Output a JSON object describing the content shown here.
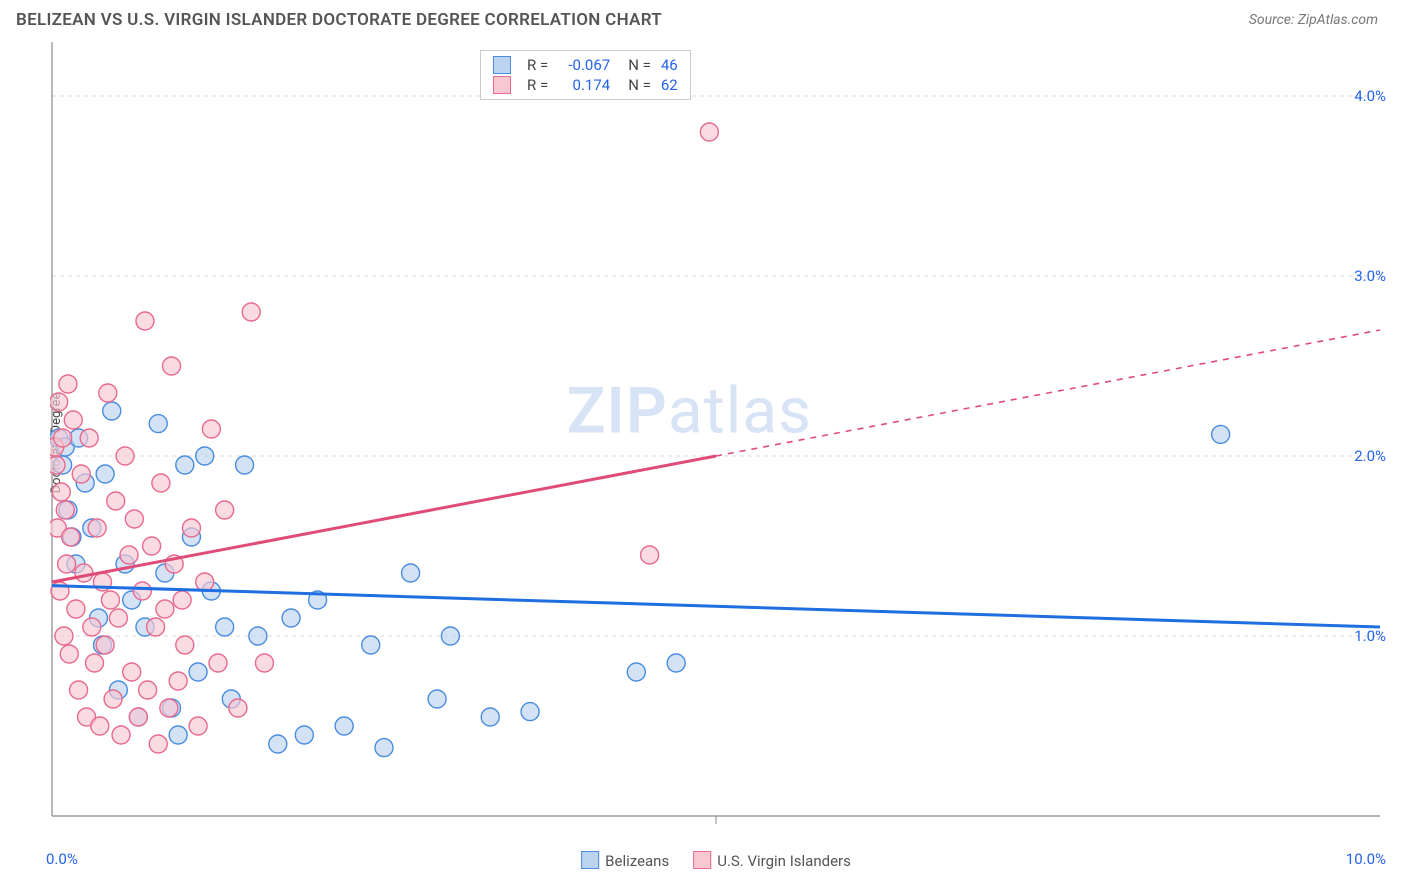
{
  "title": "BELIZEAN VS U.S. VIRGIN ISLANDER DOCTORATE DEGREE CORRELATION CHART",
  "source_label": "Source: ZipAtlas.com",
  "ylabel": "Doctorate Degree",
  "watermark_a": "ZIP",
  "watermark_b": "atlas",
  "chart": {
    "type": "scatter",
    "xlim": [
      0,
      10
    ],
    "ylim": [
      0,
      4.3
    ],
    "x_ticks": [
      "0.0%",
      "10.0%"
    ],
    "y_ticks": [
      {
        "v": 1.0,
        "label": "1.0%"
      },
      {
        "v": 2.0,
        "label": "2.0%"
      },
      {
        "v": 3.0,
        "label": "3.0%"
      },
      {
        "v": 4.0,
        "label": "4.0%"
      }
    ],
    "grid_color": "#d9d9d9",
    "axis_color": "#888888",
    "background": "#ffffff",
    "marker_radius": 9,
    "marker_stroke_width": 1.4,
    "line_width": 3,
    "series": [
      {
        "name": "Belizeans",
        "fill": "#bcd4f0",
        "stroke": "#4a8de0",
        "line_color": "#1f6fe0",
        "trend": {
          "x1": 0,
          "y1": 1.28,
          "x2": 10,
          "y2": 1.05,
          "solid_until_x": 10
        },
        "points": [
          [
            0.05,
            2.1
          ],
          [
            0.08,
            1.95
          ],
          [
            0.1,
            2.05
          ],
          [
            0.12,
            1.7
          ],
          [
            0.15,
            1.55
          ],
          [
            0.18,
            1.4
          ],
          [
            0.2,
            2.1
          ],
          [
            0.25,
            1.85
          ],
          [
            0.3,
            1.6
          ],
          [
            0.35,
            1.1
          ],
          [
            0.38,
            0.95
          ],
          [
            0.4,
            1.9
          ],
          [
            0.45,
            2.25
          ],
          [
            0.5,
            0.7
          ],
          [
            0.55,
            1.4
          ],
          [
            0.6,
            1.2
          ],
          [
            0.65,
            0.55
          ],
          [
            0.7,
            1.05
          ],
          [
            0.8,
            2.18
          ],
          [
            0.85,
            1.35
          ],
          [
            0.9,
            0.6
          ],
          [
            0.95,
            0.45
          ],
          [
            1.0,
            1.95
          ],
          [
            1.05,
            1.55
          ],
          [
            1.1,
            0.8
          ],
          [
            1.15,
            2.0
          ],
          [
            1.2,
            1.25
          ],
          [
            1.3,
            1.05
          ],
          [
            1.35,
            0.65
          ],
          [
            1.45,
            1.95
          ],
          [
            1.55,
            1.0
          ],
          [
            1.7,
            0.4
          ],
          [
            1.8,
            1.1
          ],
          [
            1.9,
            0.45
          ],
          [
            2.0,
            1.2
          ],
          [
            2.2,
            0.5
          ],
          [
            2.4,
            0.95
          ],
          [
            2.5,
            0.38
          ],
          [
            2.7,
            1.35
          ],
          [
            2.9,
            0.65
          ],
          [
            3.0,
            1.0
          ],
          [
            3.3,
            0.55
          ],
          [
            3.6,
            0.58
          ],
          [
            4.4,
            0.8
          ],
          [
            4.7,
            0.85
          ],
          [
            8.8,
            2.12
          ]
        ]
      },
      {
        "name": "U.S. Virgin Islanders",
        "fill": "#f7c7d2",
        "stroke": "#e86a8e",
        "line_color": "#e04c78",
        "trend": {
          "x1": 0,
          "y1": 1.3,
          "x2": 10,
          "y2": 2.7,
          "solid_until_x": 5.0
        },
        "points": [
          [
            0.02,
            2.05
          ],
          [
            0.03,
            1.95
          ],
          [
            0.04,
            1.6
          ],
          [
            0.05,
            2.3
          ],
          [
            0.06,
            1.25
          ],
          [
            0.07,
            1.8
          ],
          [
            0.08,
            2.1
          ],
          [
            0.09,
            1.0
          ],
          [
            0.1,
            1.7
          ],
          [
            0.11,
            1.4
          ],
          [
            0.12,
            2.4
          ],
          [
            0.13,
            0.9
          ],
          [
            0.14,
            1.55
          ],
          [
            0.16,
            2.2
          ],
          [
            0.18,
            1.15
          ],
          [
            0.2,
            0.7
          ],
          [
            0.22,
            1.9
          ],
          [
            0.24,
            1.35
          ],
          [
            0.26,
            0.55
          ],
          [
            0.28,
            2.1
          ],
          [
            0.3,
            1.05
          ],
          [
            0.32,
            0.85
          ],
          [
            0.34,
            1.6
          ],
          [
            0.36,
            0.5
          ],
          [
            0.38,
            1.3
          ],
          [
            0.4,
            0.95
          ],
          [
            0.42,
            2.35
          ],
          [
            0.44,
            1.2
          ],
          [
            0.46,
            0.65
          ],
          [
            0.48,
            1.75
          ],
          [
            0.5,
            1.1
          ],
          [
            0.52,
            0.45
          ],
          [
            0.55,
            2.0
          ],
          [
            0.58,
            1.45
          ],
          [
            0.6,
            0.8
          ],
          [
            0.62,
            1.65
          ],
          [
            0.65,
            0.55
          ],
          [
            0.68,
            1.25
          ],
          [
            0.7,
            2.75
          ],
          [
            0.72,
            0.7
          ],
          [
            0.75,
            1.5
          ],
          [
            0.78,
            1.05
          ],
          [
            0.8,
            0.4
          ],
          [
            0.82,
            1.85
          ],
          [
            0.85,
            1.15
          ],
          [
            0.88,
            0.6
          ],
          [
            0.9,
            2.5
          ],
          [
            0.92,
            1.4
          ],
          [
            0.95,
            0.75
          ],
          [
            0.98,
            1.2
          ],
          [
            1.0,
            0.95
          ],
          [
            1.05,
            1.6
          ],
          [
            1.1,
            0.5
          ],
          [
            1.15,
            1.3
          ],
          [
            1.2,
            2.15
          ],
          [
            1.25,
            0.85
          ],
          [
            1.3,
            1.7
          ],
          [
            1.4,
            0.6
          ],
          [
            1.5,
            2.8
          ],
          [
            1.6,
            0.85
          ],
          [
            4.5,
            1.45
          ],
          [
            4.95,
            3.8
          ]
        ]
      }
    ]
  },
  "top_legend": [
    {
      "swatch_fill": "#bcd4f0",
      "swatch_stroke": "#4a8de0",
      "r": "-0.067",
      "n": "46"
    },
    {
      "swatch_fill": "#f7c7d2",
      "swatch_stroke": "#e86a8e",
      "r": "0.174",
      "n": "62"
    }
  ],
  "bottom_legend": [
    {
      "swatch_fill": "#bcd4f0",
      "swatch_stroke": "#4a8de0",
      "label": "Belizeans"
    },
    {
      "swatch_fill": "#f7c7d2",
      "swatch_stroke": "#e86a8e",
      "label": "U.S. Virgin Islanders"
    }
  ]
}
